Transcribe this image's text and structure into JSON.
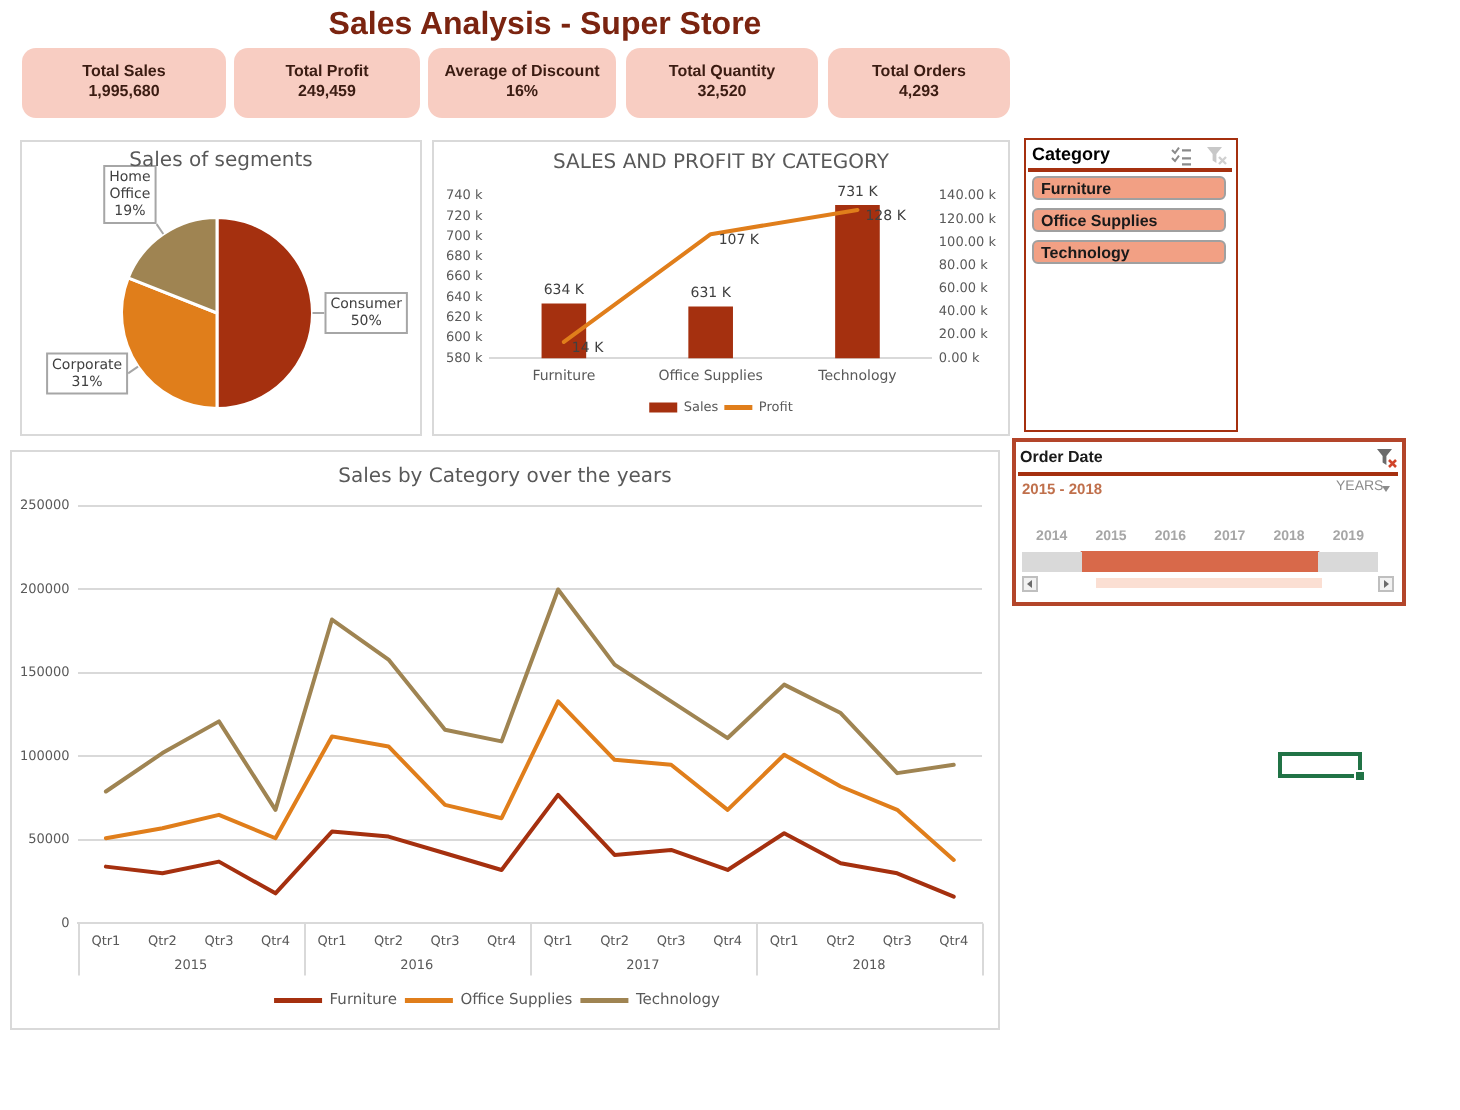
{
  "chart_data": [
    {
      "type": "other",
      "title": "Sales Analysis - Super Store"
    },
    {
      "type": "other",
      "title": "Total Sales",
      "annotations": [
        "1,995,680"
      ]
    },
    {
      "type": "other",
      "title": "Total Profit",
      "annotations": [
        "249,459"
      ]
    },
    {
      "type": "other",
      "title": "Average of Discount",
      "annotations": [
        "16%"
      ]
    },
    {
      "type": "other",
      "title": "Total Quantity",
      "annotations": [
        "32,520"
      ]
    },
    {
      "type": "other",
      "title": "Total Orders",
      "annotations": [
        "4,293"
      ]
    },
    {
      "type": "pie",
      "title": "Sales of segments",
      "categories": [
        "Consumer",
        "Corporate",
        "Home Office"
      ],
      "values": [
        50,
        31,
        19
      ],
      "colors": [
        "#a5300f",
        "#e07e1b",
        "#9f8452"
      ],
      "value_labels": [
        "50%",
        "31%",
        "19%"
      ]
    },
    {
      "type": "bar",
      "title": "SALES AND PROFIT BY CATEGORY",
      "categories": [
        "Furniture",
        "Office Supplies",
        "Technology"
      ],
      "series": [
        {
          "name": "Sales",
          "type": "bar",
          "color": "#a5300f",
          "values": [
            634000,
            631000,
            731000
          ],
          "value_labels": [
            "634 K",
            "631 K",
            "731 K"
          ]
        },
        {
          "name": "Profit",
          "type": "line",
          "axis": "y2",
          "color": "#e07e1b",
          "values": [
            14000,
            107000,
            128000
          ],
          "value_labels": [
            "14 K",
            "107 K",
            "128 K"
          ]
        }
      ],
      "ylim": [
        580000,
        740000
      ],
      "yticks": [
        {
          "value": 580000,
          "label": "580 k"
        },
        {
          "value": 600000,
          "label": "600 k"
        },
        {
          "value": 620000,
          "label": "620 k"
        },
        {
          "value": 640000,
          "label": "640 k"
        },
        {
          "value": 660000,
          "label": "660 k"
        },
        {
          "value": 680000,
          "label": "680 k"
        },
        {
          "value": 700000,
          "label": "700 k"
        },
        {
          "value": 720000,
          "label": "720 k"
        },
        {
          "value": 740000,
          "label": "740 k"
        }
      ],
      "y2lim": [
        0,
        140000
      ],
      "y2ticks": [
        {
          "value": 0,
          "label": "0.00 k"
        },
        {
          "value": 20000,
          "label": "20.00 k"
        },
        {
          "value": 40000,
          "label": "40.00 k"
        },
        {
          "value": 60000,
          "label": "60.00 k"
        },
        {
          "value": 80000,
          "label": "80.00 k"
        },
        {
          "value": 100000,
          "label": "100.00 k"
        },
        {
          "value": 120000,
          "label": "120.00 k"
        },
        {
          "value": 140000,
          "label": "140.00 k"
        }
      ],
      "legend": "bottom"
    },
    {
      "type": "other",
      "title": "Category",
      "annotations": [
        "Furniture",
        "Office Supplies",
        "Technology"
      ]
    },
    {
      "type": "bar",
      "orientation": "horizontal",
      "title": "Order Date",
      "subtitle": "2015 - 2018",
      "annotations": [
        "YEARS"
      ],
      "categories": [
        null
      ],
      "base": [
        2015
      ],
      "values": [
        4
      ],
      "color": "#d8694a",
      "xlim": [
        2014,
        2020
      ],
      "xticks": [
        {
          "value": 2014.5,
          "label": "2014"
        },
        {
          "value": 2015.5,
          "label": "2015"
        },
        {
          "value": 2016.5,
          "label": "2016"
        },
        {
          "value": 2017.5,
          "label": "2017"
        },
        {
          "value": 2018.5,
          "label": "2018"
        },
        {
          "value": 2019.5,
          "label": "2019"
        }
      ]
    },
    {
      "type": "line",
      "title": "Sales by Category over the years",
      "categories": [
        "Qtr1",
        "Qtr2",
        "Qtr3",
        "Qtr4",
        "Qtr1",
        "Qtr2",
        "Qtr3",
        "Qtr4",
        "Qtr1",
        "Qtr2",
        "Qtr3",
        "Qtr4",
        "Qtr1",
        "Qtr2",
        "Qtr3",
        "Qtr4"
      ],
      "annotations": [
        "2015",
        "2016",
        "2017",
        "2018"
      ],
      "series": [
        {
          "name": "Furniture",
          "color": "#a5300f",
          "values": [
            34000,
            30000,
            37000,
            18000,
            55000,
            52000,
            42000,
            32000,
            77000,
            41000,
            44000,
            32000,
            54000,
            36000,
            30000,
            16000
          ]
        },
        {
          "name": "Office Supplies",
          "color": "#e07e1b",
          "values": [
            51000,
            57000,
            65000,
            51000,
            112000,
            106000,
            71000,
            63000,
            133000,
            98000,
            95000,
            68000,
            101000,
            82000,
            68000,
            38000
          ]
        },
        {
          "name": "Technology",
          "color": "#9f8452",
          "values": [
            79000,
            102000,
            121000,
            68000,
            182000,
            158000,
            116000,
            109000,
            200000,
            155000,
            133000,
            111000,
            143000,
            126000,
            90000,
            95000
          ]
        }
      ],
      "ylim": [
        0,
        250000
      ],
      "yticks": [
        0,
        50000,
        100000,
        150000,
        200000,
        250000
      ],
      "grid": "y",
      "legend": "bottom"
    }
  ]
}
